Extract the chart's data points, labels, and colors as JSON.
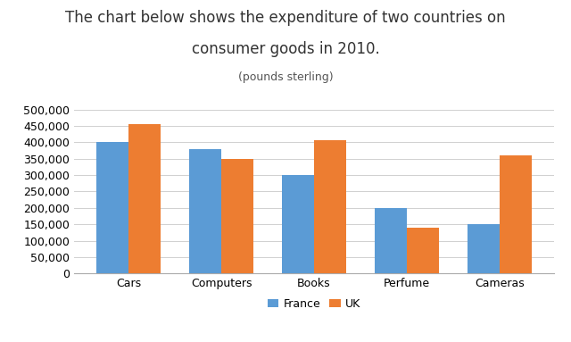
{
  "title_line1": "The chart below shows the expenditure of two countries on",
  "title_line2": "consumer goods in 2010.",
  "subtitle": "(pounds sterling)",
  "categories": [
    "Cars",
    "Computers",
    "Books",
    "Perfume",
    "Cameras"
  ],
  "france_values": [
    400000,
    380000,
    300000,
    200000,
    150000
  ],
  "uk_values": [
    455000,
    350000,
    407000,
    140000,
    360000
  ],
  "france_color": "#5b9bd5",
  "uk_color": "#ed7d31",
  "ylim": [
    0,
    500000
  ],
  "yticks": [
    0,
    50000,
    100000,
    150000,
    200000,
    250000,
    300000,
    350000,
    400000,
    450000,
    500000
  ],
  "ytick_labels": [
    "0",
    "50,000",
    "100,000",
    "150,000",
    "200,000",
    "250,000",
    "300,000",
    "350,000",
    "400,000",
    "450,000",
    "500,000"
  ],
  "legend_labels": [
    "France",
    "UK"
  ],
  "bar_width": 0.35,
  "background_color": "#ffffff",
  "grid_color": "#d0d0d0",
  "title_fontsize": 12,
  "subtitle_fontsize": 9,
  "axis_fontsize": 9,
  "legend_fontsize": 9
}
